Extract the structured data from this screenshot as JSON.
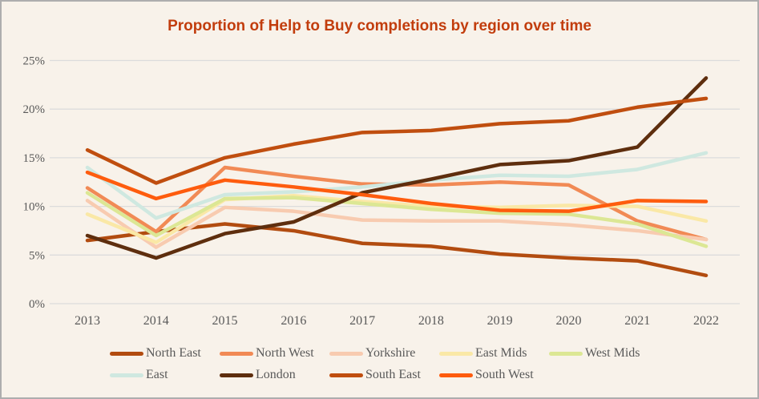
{
  "window": {
    "background_color": "#f8f2ea",
    "border_color": "#aeaeae"
  },
  "chart_data": {
    "type": "line",
    "title": "Proportion of Help to Buy completions by region over time",
    "title_color": "#c23d0d",
    "x": [
      2013,
      2014,
      2015,
      2016,
      2017,
      2018,
      2019,
      2020,
      2021,
      2022
    ],
    "xlabel": "",
    "ylabel": "",
    "ylim": [
      0,
      25
    ],
    "ytick_labels": [
      "0%",
      "5%",
      "10%",
      "15%",
      "20%",
      "25%"
    ],
    "ytick_values": [
      0,
      5,
      10,
      15,
      20,
      25
    ],
    "grid": "horizontal",
    "gridline_color": "#dcdcdc",
    "axis_text_color": "#595959",
    "legend_position": "bottom",
    "series": [
      {
        "name": "North East",
        "color": "#b24c10",
        "values": [
          6.5,
          7.4,
          8.2,
          7.5,
          6.2,
          5.9,
          5.1,
          4.7,
          4.4,
          2.9
        ]
      },
      {
        "name": "North West",
        "color": "#f18a55",
        "values": [
          11.9,
          7.4,
          14.0,
          13.1,
          12.3,
          12.2,
          12.5,
          12.2,
          8.5,
          6.6
        ]
      },
      {
        "name": "Yorkshire",
        "color": "#f8cbb0",
        "values": [
          10.6,
          5.8,
          9.9,
          9.5,
          8.6,
          8.5,
          8.5,
          8.1,
          7.5,
          6.6
        ]
      },
      {
        "name": "East Mids",
        "color": "#fae8a6",
        "values": [
          9.2,
          6.3,
          10.7,
          11.1,
          10.5,
          10.0,
          9.9,
          10.1,
          10.0,
          8.5
        ]
      },
      {
        "name": "West Mids",
        "color": "#dce794",
        "values": [
          11.4,
          7.0,
          10.8,
          10.9,
          10.3,
          9.7,
          9.3,
          9.2,
          8.2,
          5.9
        ]
      },
      {
        "name": "East",
        "color": "#cfe8e0",
        "values": [
          14.0,
          8.8,
          11.2,
          11.5,
          12.0,
          12.7,
          13.2,
          13.1,
          13.8,
          15.5
        ]
      },
      {
        "name": "London",
        "color": "#5e2e0e",
        "values": [
          7.0,
          4.7,
          7.2,
          8.4,
          11.4,
          12.8,
          14.3,
          14.7,
          16.1,
          23.2
        ]
      },
      {
        "name": "South East",
        "color": "#c04e0f",
        "values": [
          15.8,
          12.4,
          15.0,
          16.4,
          17.6,
          17.8,
          18.5,
          18.8,
          20.2,
          21.1
        ]
      },
      {
        "name": "South West",
        "color": "#fe5c0e",
        "values": [
          13.5,
          10.8,
          12.7,
          12.0,
          11.2,
          10.3,
          9.6,
          9.5,
          10.6,
          10.5
        ]
      }
    ]
  }
}
